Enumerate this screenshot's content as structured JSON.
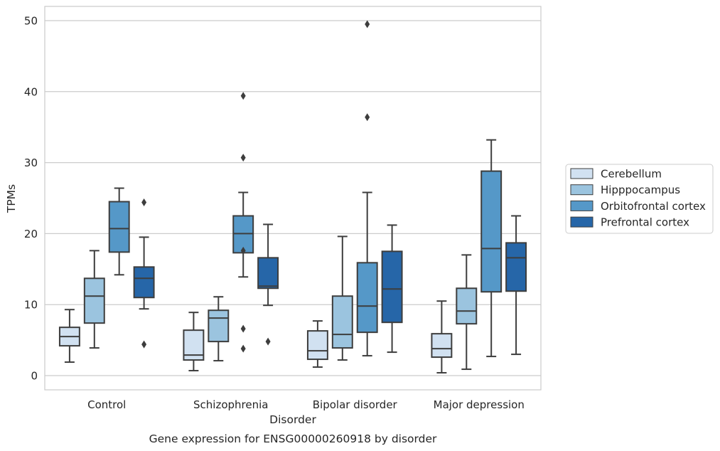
{
  "caption": "Gene expression for ENSG00000260918 by disorder",
  "chart_data": {
    "type": "box",
    "xlabel": "Disorder",
    "ylabel": "TPMs",
    "ylim": [
      -2,
      52
    ],
    "yticks": [
      0,
      10,
      20,
      30,
      40,
      50
    ],
    "grid": "horizontal",
    "legend_placement": "center-right-outside",
    "categories": [
      "Control",
      "Schizophrenia",
      "Bipolar disorder",
      "Major depression"
    ],
    "series": [
      {
        "name": "Cerebellum",
        "color": "#d1e1f1",
        "boxes": [
          {
            "whislo": 1.9,
            "q1": 4.2,
            "med": 5.5,
            "q3": 6.8,
            "whishi": 9.3,
            "fliers": []
          },
          {
            "whislo": 0.7,
            "q1": 2.2,
            "med": 2.9,
            "q3": 6.4,
            "whishi": 8.9,
            "fliers": []
          },
          {
            "whislo": 1.2,
            "q1": 2.3,
            "med": 3.5,
            "q3": 6.3,
            "whishi": 7.7,
            "fliers": []
          },
          {
            "whislo": 0.4,
            "q1": 2.6,
            "med": 3.8,
            "q3": 5.9,
            "whishi": 10.5,
            "fliers": []
          }
        ]
      },
      {
        "name": "Hipppocampus",
        "color": "#9bc4df",
        "boxes": [
          {
            "whislo": 3.9,
            "q1": 7.4,
            "med": 11.2,
            "q3": 13.7,
            "whishi": 17.6,
            "fliers": []
          },
          {
            "whislo": 2.1,
            "q1": 4.8,
            "med": 8.1,
            "q3": 9.2,
            "whishi": 11.1,
            "fliers": []
          },
          {
            "whislo": 2.2,
            "q1": 3.9,
            "med": 5.8,
            "q3": 11.2,
            "whishi": 19.6,
            "fliers": []
          },
          {
            "whislo": 0.9,
            "q1": 7.3,
            "med": 9.1,
            "q3": 12.3,
            "whishi": 17.0,
            "fliers": []
          }
        ]
      },
      {
        "name": "Orbitofrontal cortex",
        "color": "#5598c8",
        "boxes": [
          {
            "whislo": 14.2,
            "q1": 17.4,
            "med": 20.7,
            "q3": 24.5,
            "whishi": 26.4,
            "fliers": []
          },
          {
            "whislo": 13.9,
            "q1": 17.3,
            "med": 20.0,
            "q3": 22.5,
            "whishi": 25.8,
            "fliers": [
              17.6,
              6.6,
              3.8,
              30.7,
              39.4
            ]
          },
          {
            "whislo": 2.8,
            "q1": 6.1,
            "med": 9.8,
            "q3": 15.9,
            "whishi": 25.8,
            "fliers": [
              36.4,
              49.5
            ]
          },
          {
            "whislo": 2.7,
            "q1": 11.8,
            "med": 17.9,
            "q3": 28.8,
            "whishi": 33.2,
            "fliers": []
          }
        ]
      },
      {
        "name": "Prefrontal cortex",
        "color": "#2666a8",
        "boxes": [
          {
            "whislo": 9.4,
            "q1": 11.0,
            "med": 13.7,
            "q3": 15.3,
            "whishi": 19.5,
            "fliers": [
              4.4,
              24.4
            ]
          },
          {
            "whislo": 9.9,
            "q1": 12.3,
            "med": 12.6,
            "q3": 16.6,
            "whishi": 21.3,
            "fliers": [
              4.8
            ]
          },
          {
            "whislo": 3.3,
            "q1": 7.5,
            "med": 12.2,
            "q3": 17.5,
            "whishi": 21.2,
            "fliers": []
          },
          {
            "whislo": 3.0,
            "q1": 11.9,
            "med": 16.6,
            "q3": 18.7,
            "whishi": 22.5,
            "fliers": []
          }
        ]
      }
    ]
  }
}
